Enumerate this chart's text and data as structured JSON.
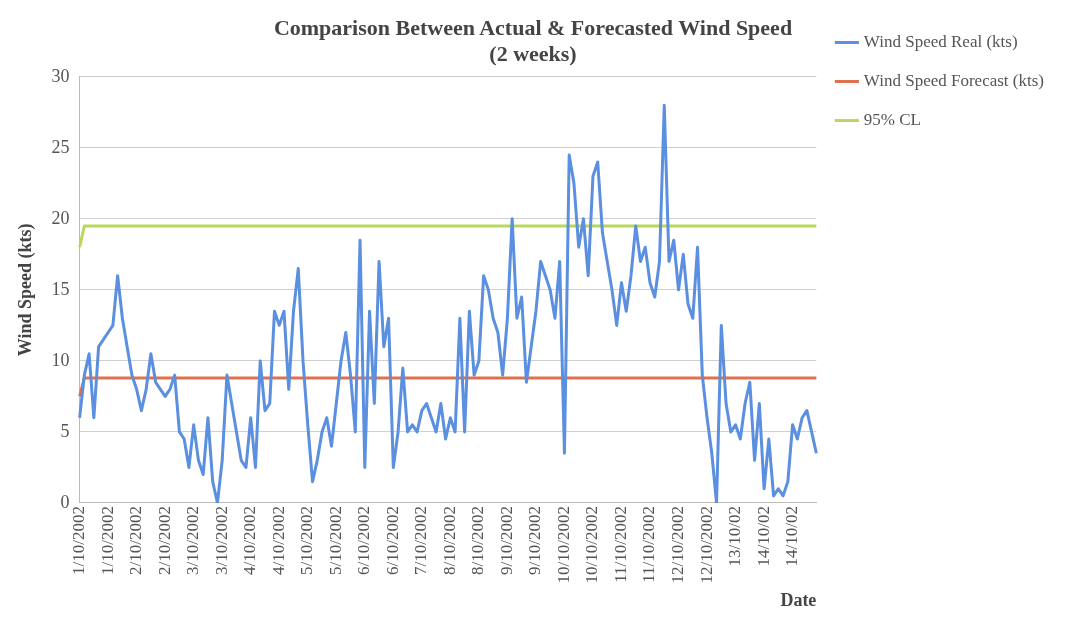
{
  "chart_data": {
    "type": "line",
    "title": "Comparison Between Actual & Forecasted Wind Speed",
    "subtitle": "(2 weeks)",
    "xlabel": "Date",
    "ylabel": "Wind Speed (kts)",
    "categories": [
      "1/10/2002",
      null,
      null,
      null,
      null,
      null,
      "1/10/2002",
      null,
      null,
      null,
      null,
      null,
      "2/10/2002",
      null,
      null,
      null,
      null,
      null,
      "2/10/2002",
      null,
      null,
      null,
      null,
      null,
      "3/10/2002",
      null,
      null,
      null,
      null,
      null,
      "3/10/2002",
      null,
      null,
      null,
      null,
      null,
      "4/10/2002",
      null,
      null,
      null,
      null,
      null,
      "4/10/2002",
      null,
      null,
      null,
      null,
      null,
      "5/10/2002",
      null,
      null,
      null,
      null,
      null,
      "5/10/2002",
      null,
      null,
      null,
      null,
      null,
      "6/10/2002",
      null,
      null,
      null,
      null,
      null,
      "6/10/2002",
      null,
      null,
      null,
      null,
      null,
      "7/10/2002",
      null,
      null,
      null,
      null,
      null,
      "8/10/2002",
      null,
      null,
      null,
      null,
      null,
      "8/10/2002",
      null,
      null,
      null,
      null,
      null,
      "9/10/2002",
      null,
      null,
      null,
      null,
      null,
      "9/10/2002",
      null,
      null,
      null,
      null,
      null,
      "10/10/2002",
      null,
      null,
      null,
      null,
      null,
      "10/10/2002",
      null,
      null,
      null,
      null,
      null,
      "11/10/2002",
      null,
      null,
      null,
      null,
      null,
      "11/10/2002",
      null,
      null,
      null,
      null,
      null,
      "12/10/2002",
      null,
      null,
      null,
      null,
      null,
      "12/10/2002",
      null,
      null,
      null,
      null,
      null,
      "13/10/02",
      null,
      null,
      null,
      null,
      null,
      "14/10/02",
      null,
      null,
      null,
      null,
      null,
      "14/10/02",
      null,
      null,
      null,
      null,
      null
    ],
    "series": [
      {
        "name": "Wind Speed Real (kts)",
        "color": "#5b8fdf",
        "values": [
          6,
          9,
          10.5,
          6,
          11,
          11.5,
          12,
          12.5,
          16,
          13,
          11,
          9,
          8,
          6.5,
          8,
          10.5,
          8.5,
          8,
          7.5,
          8,
          9,
          5,
          4.5,
          2.5,
          5.5,
          3,
          2,
          6,
          1.5,
          0,
          3,
          9,
          7,
          5,
          3,
          2.5,
          6,
          2.5,
          10,
          6.5,
          7,
          13.5,
          12.5,
          13.5,
          8,
          13.5,
          16.5,
          10,
          5.5,
          1.5,
          3,
          5,
          6,
          4,
          7,
          10,
          12,
          9,
          5,
          18.5,
          2.5,
          13.5,
          7,
          17,
          11,
          13,
          2.5,
          5,
          9.5,
          5,
          5.5,
          5,
          6.5,
          7,
          6,
          5,
          7,
          4.5,
          6,
          5,
          13,
          5,
          13.5,
          9,
          10,
          16,
          15,
          13,
          12,
          9,
          13,
          20,
          13,
          14.5,
          8.5,
          11,
          13.5,
          17,
          16,
          15,
          13,
          17,
          3.5,
          24.5,
          22.5,
          18,
          20,
          16,
          23,
          24,
          19,
          17,
          15,
          12.5,
          15.5,
          13.5,
          16,
          19.5,
          17,
          18,
          15.5,
          14.5,
          17,
          28,
          17,
          18.5,
          15,
          17.5,
          14,
          13,
          18,
          9,
          6,
          3.5,
          0,
          12.5,
          7,
          5,
          5.5,
          4.5,
          7,
          8.5,
          3,
          7,
          1,
          4.5,
          0.5,
          1,
          0.5,
          1.5,
          5.5,
          4.5,
          6,
          6.5,
          5,
          3.5
        ]
      },
      {
        "name": "Wind Speed Forecast (kts)",
        "color": "#e0714f",
        "values": [
          7.5,
          8.8,
          8.8,
          8.8,
          8.8,
          8.8,
          8.8,
          8.8,
          8.8,
          8.8,
          8.8,
          8.8,
          8.8,
          8.8,
          8.8,
          8.8,
          8.8,
          8.8,
          8.8,
          8.8,
          8.8,
          8.8,
          8.8,
          8.8,
          8.8,
          8.8,
          8.8,
          8.8,
          8.8,
          8.8,
          8.8,
          8.8,
          8.8,
          8.8,
          8.8,
          8.8,
          8.8,
          8.8,
          8.8,
          8.8,
          8.8,
          8.8,
          8.8,
          8.8,
          8.8,
          8.8,
          8.8,
          8.8,
          8.8,
          8.8,
          8.8,
          8.8,
          8.8,
          8.8,
          8.8,
          8.8,
          8.8,
          8.8,
          8.8,
          8.8,
          8.8,
          8.8,
          8.8,
          8.8,
          8.8,
          8.8,
          8.8,
          8.8,
          8.8,
          8.8,
          8.8,
          8.8,
          8.8,
          8.8,
          8.8,
          8.8,
          8.8,
          8.8,
          8.8,
          8.8,
          8.8,
          8.8,
          8.8,
          8.8,
          8.8,
          8.8,
          8.8,
          8.8,
          8.8,
          8.8,
          8.8,
          8.8,
          8.8,
          8.8,
          8.8,
          8.8,
          8.8,
          8.8,
          8.8,
          8.8,
          8.8,
          8.8,
          8.8,
          8.8,
          8.8,
          8.8,
          8.8,
          8.8,
          8.8,
          8.8,
          8.8,
          8.8,
          8.8,
          8.8,
          8.8,
          8.8,
          8.8,
          8.8,
          8.8,
          8.8,
          8.8,
          8.8,
          8.8,
          8.8,
          8.8,
          8.8,
          8.8,
          8.8,
          8.8,
          8.8,
          8.8,
          8.8,
          8.8,
          8.8,
          8.8,
          8.8,
          8.8,
          8.8,
          8.8,
          8.8,
          8.8,
          8.8,
          8.8,
          8.8,
          8.8,
          8.8,
          8.8,
          8.8,
          8.8,
          8.8,
          8.8,
          8.8,
          8.8,
          8.8,
          8.8,
          8.8
        ]
      },
      {
        "name": "95% CL",
        "color": "#b8d85c",
        "values": [
          18,
          19.5,
          19.5,
          19.5,
          19.5,
          19.5,
          19.5,
          19.5,
          19.5,
          19.5,
          19.5,
          19.5,
          19.5,
          19.5,
          19.5,
          19.5,
          19.5,
          19.5,
          19.5,
          19.5,
          19.5,
          19.5,
          19.5,
          19.5,
          19.5,
          19.5,
          19.5,
          19.5,
          19.5,
          19.5,
          19.5,
          19.5,
          19.5,
          19.5,
          19.5,
          19.5,
          19.5,
          19.5,
          19.5,
          19.5,
          19.5,
          19.5,
          19.5,
          19.5,
          19.5,
          19.5,
          19.5,
          19.5,
          19.5,
          19.5,
          19.5,
          19.5,
          19.5,
          19.5,
          19.5,
          19.5,
          19.5,
          19.5,
          19.5,
          19.5,
          19.5,
          19.5,
          19.5,
          19.5,
          19.5,
          19.5,
          19.5,
          19.5,
          19.5,
          19.5,
          19.5,
          19.5,
          19.5,
          19.5,
          19.5,
          19.5,
          19.5,
          19.5,
          19.5,
          19.5,
          19.5,
          19.5,
          19.5,
          19.5,
          19.5,
          19.5,
          19.5,
          19.5,
          19.5,
          19.5,
          19.5,
          19.5,
          19.5,
          19.5,
          19.5,
          19.5,
          19.5,
          19.5,
          19.5,
          19.5,
          19.5,
          19.5,
          19.5,
          19.5,
          19.5,
          19.5,
          19.5,
          19.5,
          19.5,
          19.5,
          19.5,
          19.5,
          19.5,
          19.5,
          19.5,
          19.5,
          19.5,
          19.5,
          19.5,
          19.5,
          19.5,
          19.5,
          19.5,
          19.5,
          19.5,
          19.5,
          19.5,
          19.5,
          19.5,
          19.5,
          19.5,
          19.5,
          19.5,
          19.5,
          19.5,
          19.5,
          19.5,
          19.5,
          19.5,
          19.5,
          19.5,
          19.5,
          19.5,
          19.5,
          19.5,
          19.5,
          19.5,
          19.5,
          19.5,
          19.5,
          19.5,
          19.5,
          19.5,
          19.5,
          19.5,
          19.5
        ]
      }
    ],
    "ylim": [
      0,
      30
    ],
    "yticks": [
      0,
      5,
      10,
      15,
      20,
      25,
      30
    ],
    "grid": "y",
    "legend": "right",
    "marker": "none",
    "line_style": "solid"
  }
}
